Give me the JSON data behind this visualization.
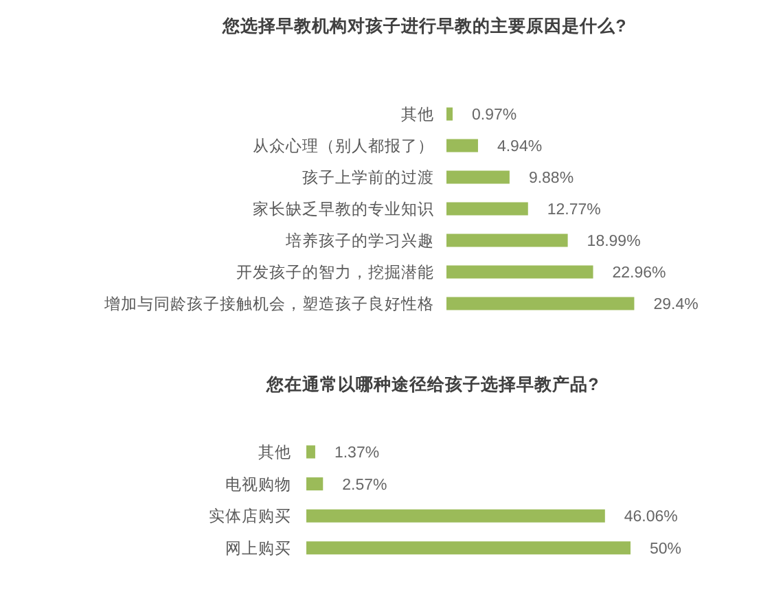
{
  "chart_data": [
    {
      "type": "bar",
      "orientation": "horizontal",
      "title": "您选择早教机构对孩子进行早教的主要原因是什么?",
      "categories": [
        "其他",
        "从众心理（别人都报了）",
        "孩子上学前的过渡",
        "家长缺乏早教的专业知识",
        "培养孩子的学习兴趣",
        "开发孩子的智力，挖掘潜能",
        "增加与同龄孩子接触机会，塑造孩子良好性格"
      ],
      "values": [
        0.97,
        4.94,
        9.88,
        12.77,
        18.99,
        22.96,
        29.4
      ],
      "value_labels": [
        "0.97%",
        "4.94%",
        "9.88%",
        "12.77%",
        "18.99%",
        "22.96%",
        "29.4%"
      ],
      "color": "#9bbb59"
    },
    {
      "type": "bar",
      "orientation": "horizontal",
      "title": "您在通常以哪种途径给孩子选择早教产品?",
      "categories": [
        "其他",
        "电视购物",
        "实体店购买",
        "网上购买"
      ],
      "values": [
        1.37,
        2.57,
        46.06,
        50
      ],
      "value_labels": [
        "1.37%",
        "2.57%",
        "46.06%",
        "50%"
      ],
      "color": "#9bbb59"
    }
  ]
}
